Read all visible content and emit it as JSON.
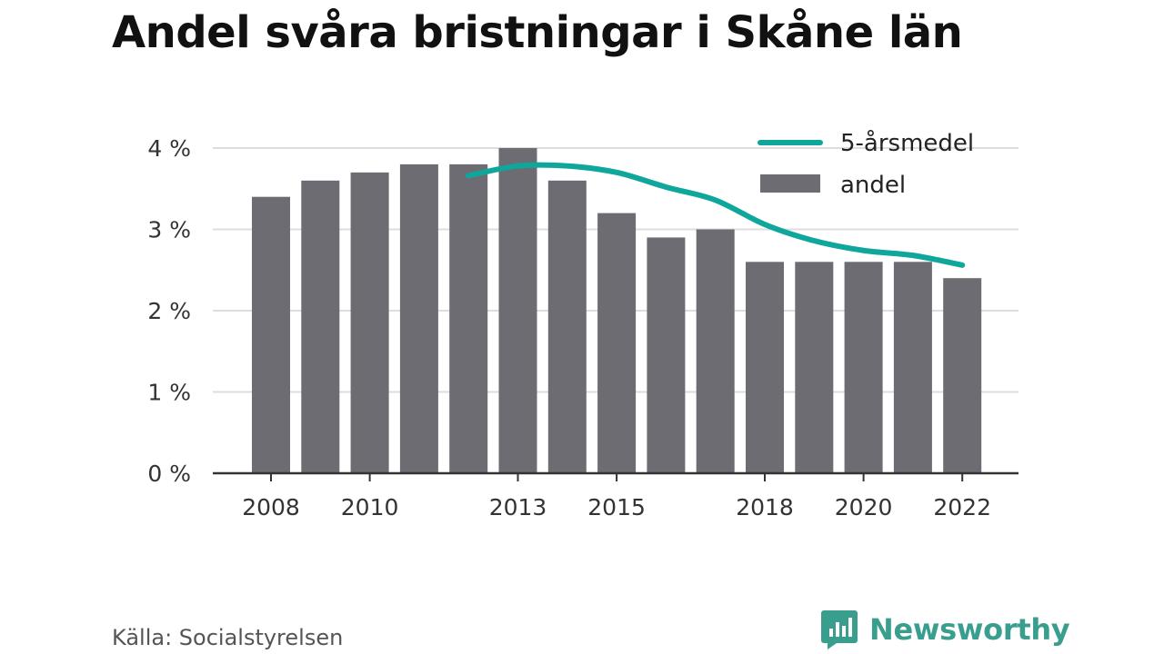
{
  "title": "Andel svåra bristningar i Skåne län",
  "source": "Källa: Socialstyrelsen",
  "brand": {
    "name": "Newsworthy",
    "icon": "newsworthy-logo-icon",
    "color": "#3a9e8f"
  },
  "colors": {
    "bar": "#6d6c73",
    "line": "#0fa69b",
    "grid": "#dddddd",
    "axis": "#333333"
  },
  "chart_data": {
    "type": "bar",
    "x": [
      2008,
      2009,
      2010,
      2011,
      2012,
      2013,
      2014,
      2015,
      2016,
      2017,
      2018,
      2019,
      2020,
      2021,
      2022
    ],
    "x_tick_labels": [
      "2008",
      "2010",
      "2013",
      "2015",
      "2018",
      "2020",
      "2022"
    ],
    "x_tick_values": [
      2008,
      2010,
      2013,
      2015,
      2018,
      2020,
      2022
    ],
    "y_tick_labels": [
      "0 %",
      "1 %",
      "2 %",
      "3 %",
      "4 %"
    ],
    "y_tick_values": [
      0,
      1,
      2,
      3,
      4
    ],
    "ylim": [
      0,
      4
    ],
    "grid": true,
    "legend_position": "top-right",
    "series": [
      {
        "name": "andel",
        "type": "bar",
        "values": [
          3.4,
          3.6,
          3.7,
          3.8,
          3.8,
          4.0,
          3.6,
          3.2,
          2.9,
          3.0,
          2.6,
          2.6,
          2.6,
          2.6,
          2.4
        ]
      },
      {
        "name": "5-årsmedel",
        "type": "line",
        "x": [
          2012,
          2013,
          2014,
          2015,
          2016,
          2017,
          2018,
          2019,
          2020,
          2021,
          2022
        ],
        "values": [
          3.66,
          3.78,
          3.78,
          3.7,
          3.52,
          3.36,
          3.06,
          2.86,
          2.74,
          2.68,
          2.56
        ]
      }
    ]
  }
}
